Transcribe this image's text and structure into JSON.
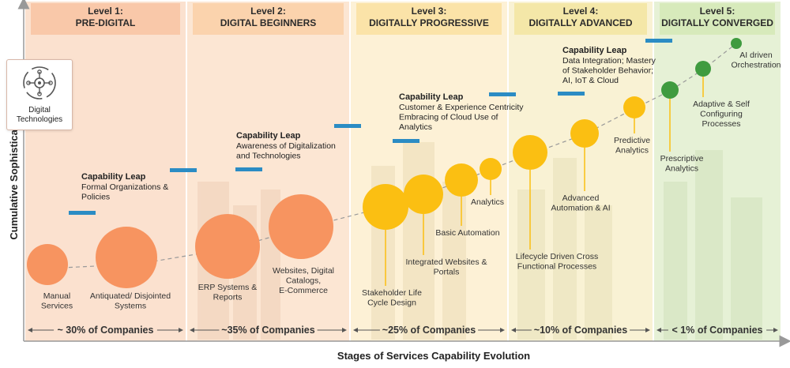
{
  "axes": {
    "y_label": "Cumulative Sophistication",
    "x_label": "Stages of Services Capability Evolution"
  },
  "icon": {
    "name": "digital-technologies-icon",
    "label": "Digital Technologies"
  },
  "levels": [
    {
      "level": "Level 1:",
      "name": "PRE-DIGITAL",
      "share": "~ 30% of Companies",
      "header_color": "#f9c8a9",
      "band_color": "#fbe1cf"
    },
    {
      "level": "Level 2:",
      "name": "DIGITAL BEGINNERS",
      "share": "~35% of Companies",
      "header_color": "#fbd3ad",
      "band_color": "#fce6d3"
    },
    {
      "level": "Level 3:",
      "name": "DIGITALLY PROGRESSIVE",
      "share": "~25% of Companies",
      "header_color": "#fbe3a8",
      "band_color": "#fdf1d6"
    },
    {
      "level": "Level 4:",
      "name": "DIGITALLY ADVANCED",
      "share": "~10% of Companies",
      "header_color": "#f4e7a8",
      "band_color": "#f9f2d4"
    },
    {
      "level": "Level 5:",
      "name": "DIGITALLY CONVERGED",
      "share": "< 1% of Companies",
      "header_color": "#d7eabb",
      "band_color": "#e6f1d6"
    }
  ],
  "capability_leaps": [
    {
      "title": "Capability Leap",
      "lines": [
        "Formal Organizations &",
        "Policies"
      ]
    },
    {
      "title": "Capability Leap",
      "lines": [
        "Awareness of Digitalization",
        "and Technologies"
      ]
    },
    {
      "title": "Capability Leap",
      "lines": [
        "Customer & Experience Centricity",
        "Embracing of Cloud Use of",
        "Analytics"
      ]
    },
    {
      "title": "Capability Leap",
      "lines": [
        "Data Integration; Mastery",
        "of Stakeholder Behavior;",
        "AI, IoT & Cloud"
      ]
    }
  ],
  "capabilities": [
    {
      "lines": [
        "Manual",
        "Services"
      ],
      "level": 1
    },
    {
      "lines": [
        "Antiquated/ Disjointed",
        "Systems"
      ],
      "level": 1
    },
    {
      "lines": [
        "ERP Systems &",
        "Reports"
      ],
      "level": 2
    },
    {
      "lines": [
        "Websites, Digital",
        "Catalogs,",
        "E-Commerce"
      ],
      "level": 2
    },
    {
      "lines": [
        "Stakeholder Life",
        "Cycle Design"
      ],
      "level": 3
    },
    {
      "lines": [
        "Integrated Websites &",
        "Portals"
      ],
      "level": 3
    },
    {
      "lines": [
        "Basic Automation"
      ],
      "level": 3
    },
    {
      "lines": [
        "Analytics"
      ],
      "level": 3
    },
    {
      "lines": [
        "Lifecycle Driven Cross",
        "Functional Processes"
      ],
      "level": 4
    },
    {
      "lines": [
        "Advanced",
        "Automation & AI"
      ],
      "level": 4
    },
    {
      "lines": [
        "Predictive",
        "Analytics"
      ],
      "level": 4
    },
    {
      "lines": [
        "Prescriptive",
        "Analytics"
      ],
      "level": 5
    },
    {
      "lines": [
        "Adaptive & Self",
        "Configuring",
        "Processes"
      ],
      "level": 5
    },
    {
      "lines": [
        "AI driven",
        "Orchestration"
      ],
      "level": 5
    }
  ],
  "colors": {
    "orange": "#f79460",
    "yellow": "#fbbf12",
    "green": "#3f9b3f",
    "step": "#2b8cc4"
  }
}
